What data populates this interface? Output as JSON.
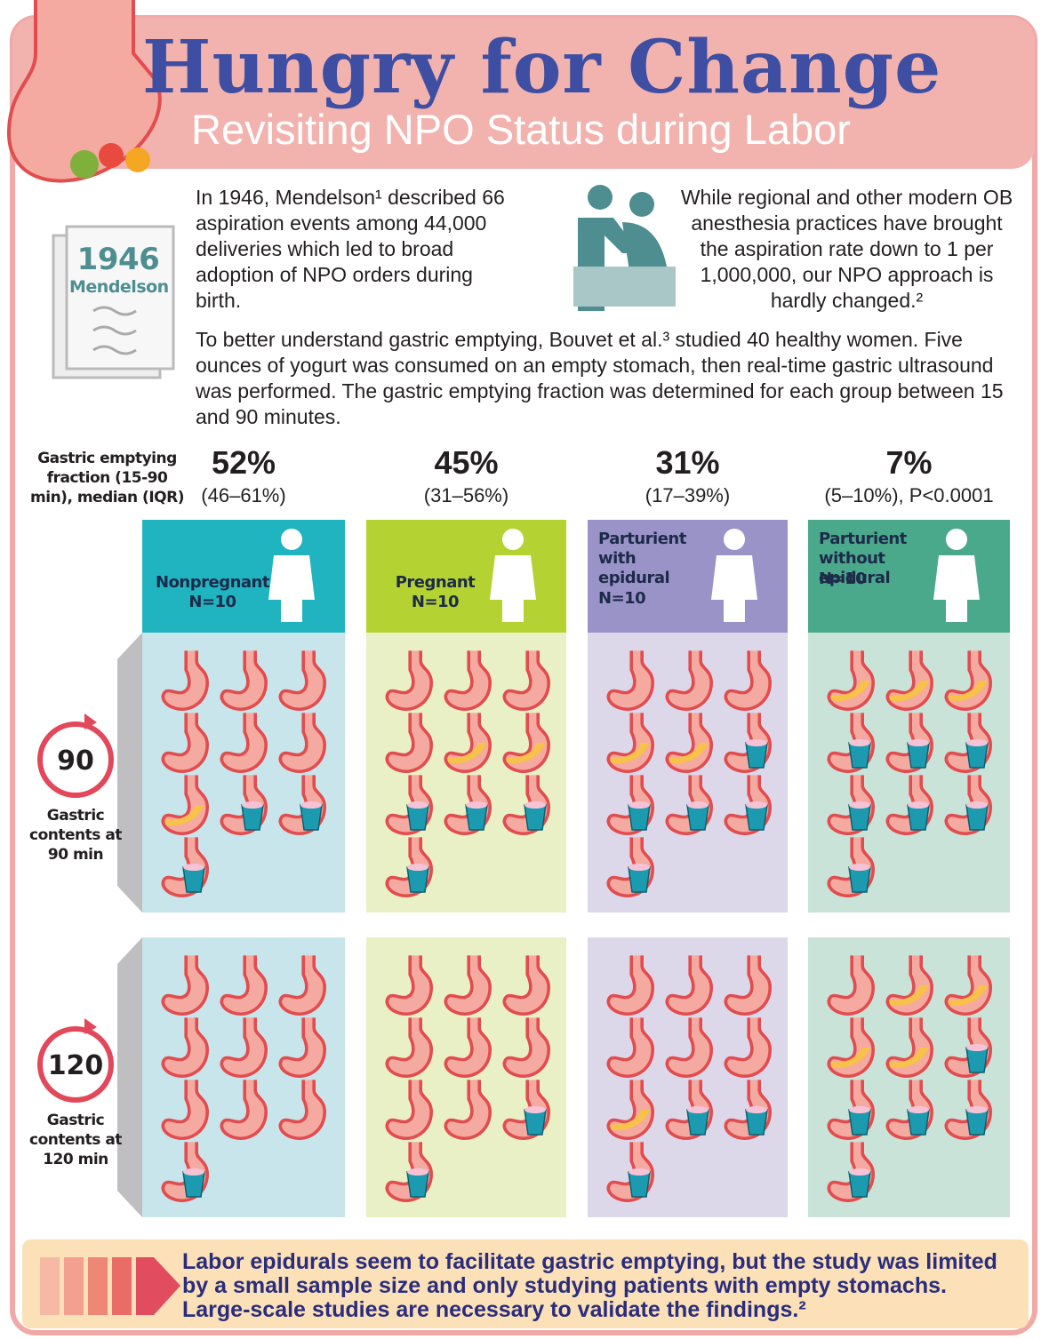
{
  "header": {
    "title": "Hungry for Change",
    "subtitle": "Revisiting NPO Status during Labor"
  },
  "badge": {
    "year": "1946",
    "name": "Mendelson"
  },
  "intro": {
    "history": "In 1946, Mendelson¹ described 66 aspiration events among 44,000 deliveries which led to broad adoption of NPO orders during birth.",
    "modern": "While regional and other modern OB anesthesia practices have brought the aspiration rate down to 1 per 1,000,000, our NPO approach is hardly changed.²",
    "study": "To better understand gastric emptying, Bouvet et al.³ studied 40 healthy women. Five ounces of yogurt was consumed on an empty stomach, then real-time gastric ultrasound was performed. The gastric emptying fraction was determined for each group between 15 and 90 minutes."
  },
  "measure_label": "Gastric emptying fraction (15-90 min), median (IQR)",
  "groups": [
    {
      "fraction": "52%",
      "range": "(46–61%)",
      "label": "Nonpregnant",
      "n": "N=10"
    },
    {
      "fraction": "45%",
      "range": "(31–56%)",
      "label": "Pregnant",
      "n": "N=10"
    },
    {
      "fraction": "31%",
      "range": "(17–39%)",
      "label": "Parturient with epidural",
      "n": "N=10"
    },
    {
      "fraction": "7%",
      "range": "(5–10%), P<0.0001",
      "label": "Parturient without epidural",
      "n": "N=10"
    }
  ],
  "timepoints": [
    {
      "minutes": "90",
      "label": "Gastric contents at 90 min"
    },
    {
      "minutes": "120",
      "label": "Gastric contents at 120 min"
    }
  ],
  "conclusion": "Labor epidurals seem to facilitate gastric emptying, but the study was limited by a small sample size and only studying patients with empty stomachs. Large-scale studies are necessary to validate the findings.²"
}
